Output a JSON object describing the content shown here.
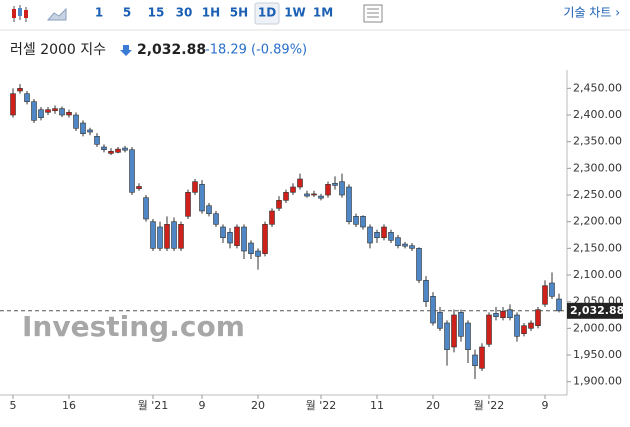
{
  "toolbar": {
    "intervals": [
      "1",
      "5",
      "15",
      "30",
      "1H",
      "5H",
      "1D",
      "1W",
      "1M"
    ],
    "selected": 6,
    "tech_chart": "기술 차트 ›"
  },
  "chart_data": {
    "type": "candlestick",
    "title": "러셀 2000 지수",
    "last_price": "2,032.88",
    "change": -18.29,
    "change_pct": "(-0.89%)",
    "watermark": "Investing.com",
    "price_label": "2,032.88",
    "price_line": 2032.88,
    "up_color": "#d0201b",
    "down_color": "#4e86c6",
    "categories": [
      "5",
      null,
      null,
      null,
      null,
      null,
      null,
      null,
      "16",
      null,
      null,
      null,
      null,
      null,
      null,
      null,
      null,
      null,
      null,
      null,
      "월 '21",
      null,
      null,
      null,
      null,
      null,
      null,
      "9",
      null,
      null,
      null,
      null,
      null,
      null,
      null,
      "20",
      null,
      null,
      null,
      null,
      null,
      null,
      null,
      null,
      "월 '22",
      null,
      null,
      null,
      null,
      null,
      null,
      null,
      "11",
      null,
      null,
      null,
      null,
      null,
      null,
      null,
      "20",
      null,
      null,
      null,
      null,
      null,
      null,
      null,
      "월 '22",
      null,
      null,
      null,
      null,
      null,
      null,
      null,
      "9",
      null,
      null
    ],
    "open": [
      2400,
      2445,
      2440,
      2425,
      2410,
      2405,
      2408,
      2412,
      2400,
      2400,
      2385,
      2372,
      2360,
      2340,
      2328,
      2330,
      2338,
      2335,
      2262,
      2245,
      2200,
      2190,
      2150,
      2200,
      2150,
      2210,
      2255,
      2270,
      2230,
      2215,
      2190,
      2180,
      2155,
      2190,
      2160,
      2145,
      2140,
      2195,
      2225,
      2240,
      2255,
      2265,
      2252,
      2250,
      2248,
      2250,
      2272,
      2275,
      2265,
      2210,
      2210,
      2190,
      2180,
      2170,
      2180,
      2170,
      2158,
      2155,
      2150,
      2090,
      2060,
      2030,
      2010,
      1965,
      2030,
      2010,
      1950,
      1925,
      1970,
      2028,
      2020,
      2035,
      2025,
      1990,
      2000,
      2005,
      2045,
      2085,
      2055
    ],
    "high": [
      2450,
      2458,
      2445,
      2430,
      2415,
      2415,
      2418,
      2416,
      2410,
      2405,
      2390,
      2376,
      2366,
      2345,
      2338,
      2340,
      2342,
      2340,
      2272,
      2250,
      2205,
      2200,
      2210,
      2208,
      2200,
      2260,
      2280,
      2278,
      2235,
      2220,
      2195,
      2188,
      2195,
      2195,
      2165,
      2150,
      2200,
      2225,
      2248,
      2260,
      2272,
      2290,
      2258,
      2258,
      2252,
      2275,
      2285,
      2290,
      2270,
      2215,
      2212,
      2195,
      2185,
      2195,
      2185,
      2175,
      2162,
      2160,
      2152,
      2098,
      2068,
      2040,
      2015,
      2035,
      2035,
      2015,
      1960,
      1972,
      2030,
      2040,
      2040,
      2045,
      2030,
      2010,
      2015,
      2040,
      2090,
      2105,
      2065
    ],
    "low": [
      2395,
      2440,
      2420,
      2385,
      2390,
      2400,
      2402,
      2396,
      2395,
      2370,
      2360,
      2362,
      2340,
      2330,
      2325,
      2328,
      2330,
      2250,
      2258,
      2200,
      2145,
      2145,
      2145,
      2145,
      2145,
      2205,
      2250,
      2215,
      2210,
      2190,
      2160,
      2150,
      2150,
      2130,
      2130,
      2110,
      2135,
      2190,
      2220,
      2235,
      2250,
      2260,
      2245,
      2246,
      2240,
      2245,
      2260,
      2245,
      2195,
      2190,
      2185,
      2150,
      2160,
      2165,
      2160,
      2150,
      2150,
      2145,
      2085,
      2040,
      2005,
      1995,
      1930,
      1955,
      1975,
      1935,
      1905,
      1920,
      1965,
      2015,
      2015,
      2015,
      1975,
      1985,
      1995,
      2000,
      2040,
      2055,
      2030
    ],
    "close": [
      2440,
      2450,
      2425,
      2390,
      2395,
      2410,
      2412,
      2400,
      2405,
      2375,
      2365,
      2368,
      2345,
      2335,
      2332,
      2336,
      2334,
      2255,
      2266,
      2205,
      2150,
      2150,
      2195,
      2150,
      2195,
      2255,
      2275,
      2220,
      2215,
      2195,
      2170,
      2160,
      2190,
      2145,
      2140,
      2135,
      2195,
      2220,
      2240,
      2255,
      2265,
      2280,
      2248,
      2252,
      2244,
      2270,
      2268,
      2250,
      2200,
      2195,
      2190,
      2160,
      2170,
      2190,
      2165,
      2155,
      2154,
      2150,
      2090,
      2050,
      2010,
      2000,
      1960,
      2025,
      1985,
      1960,
      1930,
      1965,
      2025,
      2022,
      2032,
      2020,
      1985,
      2005,
      2010,
      2035,
      2080,
      2060,
      2032.88
    ],
    "ylim": [
      1875,
      2475
    ],
    "yticks": [
      {
        "value": 1900,
        "label": "1,900.00"
      },
      {
        "value": 1950,
        "label": "1,950.00"
      },
      {
        "value": 2000,
        "label": "2,000.00"
      },
      {
        "value": 2050,
        "label": "2,050.00"
      },
      {
        "value": 2100,
        "label": "2,100.00"
      },
      {
        "value": 2150,
        "label": "2,150.00"
      },
      {
        "value": 2200,
        "label": "2,200.00"
      },
      {
        "value": 2250,
        "label": "2,250.00"
      },
      {
        "value": 2300,
        "label": "2,300.00"
      },
      {
        "value": 2350,
        "label": "2,350.00"
      },
      {
        "value": 2400,
        "label": "2,400.00"
      },
      {
        "value": 2450,
        "label": "2,450.00"
      }
    ]
  }
}
